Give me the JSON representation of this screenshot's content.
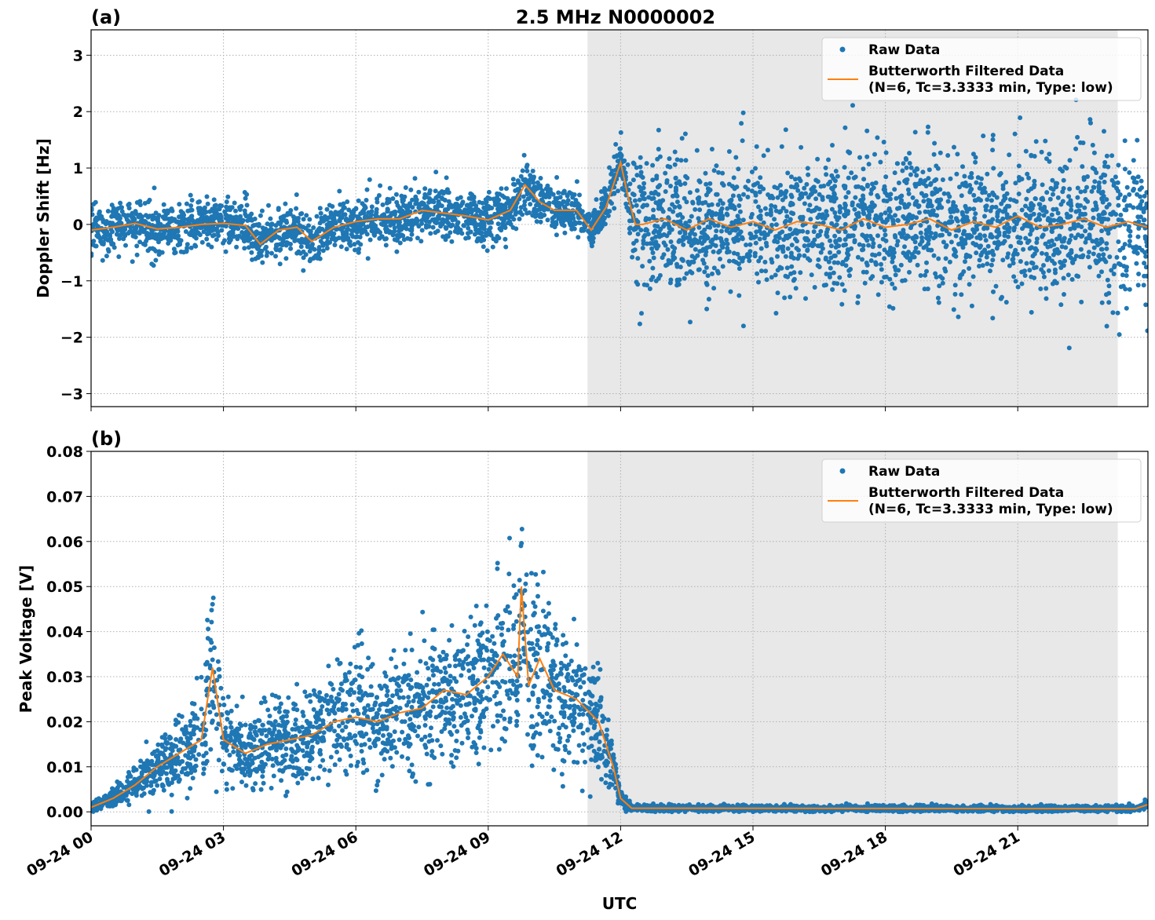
{
  "chart_data": [
    {
      "type": "scatter+line",
      "panel_label": "(a)",
      "title": "2.5 MHz N0000002",
      "ylabel": "Doppler Shift [Hz]",
      "xlabel": "",
      "ylim": [
        -3.23,
        3.45
      ],
      "xlim": [
        "09-24 00:00",
        "09-24 23:57"
      ],
      "yticks": [
        -3,
        -2,
        -1,
        0,
        1,
        2,
        3
      ],
      "ytick_labels": [
        "−3",
        "−2",
        "−1",
        "0",
        "1",
        "2",
        "3"
      ],
      "xticks": [
        "09-24 00:00",
        "09-24 03:00",
        "09-24 06:00",
        "09-24 09:00",
        "09-24 12:00",
        "09-24 15:00",
        "09-24 18:00",
        "09-24 21:00"
      ],
      "shaded_span": [
        "09-24 11:15",
        "09-24 23:16"
      ],
      "grid": true,
      "legend": "top-right",
      "legend_entries": [
        [
          "Raw Data"
        ],
        [
          "Butterworth Filtered Data",
          "(N=6, Tc=3.3333 min, Type: low)"
        ]
      ],
      "series": [
        {
          "name": "Raw Data",
          "type": "scatter",
          "color": "#1f77b4",
          "std": [
            [
              "09-24 00:00",
              0.22
            ],
            [
              "09-24 12:05",
              0.22
            ],
            [
              "09-24 12:15",
              0.62
            ],
            [
              "09-24 23:57",
              0.62
            ]
          ]
        },
        {
          "name": "Butterworth Filtered Data (N=6, Tc=3.3333 min, Type: low)",
          "type": "line",
          "color": "#ff7f0e",
          "points": [
            [
              "09-24 00:00",
              -0.1
            ],
            [
              "09-24 00:30",
              -0.05
            ],
            [
              "09-24 01:00",
              0.02
            ],
            [
              "09-24 01:30",
              -0.08
            ],
            [
              "09-24 02:00",
              -0.05
            ],
            [
              "09-24 02:30",
              0.0
            ],
            [
              "09-24 03:00",
              0.02
            ],
            [
              "09-24 03:30",
              -0.02
            ],
            [
              "09-24 03:50",
              -0.35
            ],
            [
              "09-24 04:15",
              -0.1
            ],
            [
              "09-24 04:40",
              -0.05
            ],
            [
              "09-24 05:00",
              -0.3
            ],
            [
              "09-24 05:30",
              -0.05
            ],
            [
              "09-24 06:00",
              0.05
            ],
            [
              "09-24 06:30",
              0.1
            ],
            [
              "09-24 07:00",
              0.1
            ],
            [
              "09-24 07:30",
              0.25
            ],
            [
              "09-24 08:00",
              0.2
            ],
            [
              "09-24 08:30",
              0.15
            ],
            [
              "09-24 09:00",
              0.08
            ],
            [
              "09-24 09:30",
              0.25
            ],
            [
              "09-24 09:50",
              0.7
            ],
            [
              "09-24 10:10",
              0.4
            ],
            [
              "09-24 10:30",
              0.25
            ],
            [
              "09-24 11:00",
              0.25
            ],
            [
              "09-24 11:20",
              -0.1
            ],
            [
              "09-24 11:40",
              0.3
            ],
            [
              "09-24 12:00",
              1.1
            ],
            [
              "09-24 12:10",
              0.5
            ],
            [
              "09-24 12:20",
              0.0
            ],
            [
              "09-24 12:30",
              0.0
            ],
            [
              "09-24 13:00",
              0.1
            ],
            [
              "09-24 13:30",
              -0.1
            ],
            [
              "09-24 14:00",
              0.1
            ],
            [
              "09-24 14:30",
              -0.05
            ],
            [
              "09-24 15:00",
              0.05
            ],
            [
              "09-24 15:30",
              -0.1
            ],
            [
              "09-24 16:00",
              0.05
            ],
            [
              "09-24 16:30",
              0.0
            ],
            [
              "09-24 17:00",
              -0.1
            ],
            [
              "09-24 17:30",
              0.1
            ],
            [
              "09-24 18:00",
              -0.05
            ],
            [
              "09-24 18:30",
              0.0
            ],
            [
              "09-24 19:00",
              0.1
            ],
            [
              "09-24 19:30",
              -0.1
            ],
            [
              "09-24 20:00",
              0.05
            ],
            [
              "09-24 20:30",
              -0.05
            ],
            [
              "09-24 21:00",
              0.15
            ],
            [
              "09-24 21:30",
              -0.05
            ],
            [
              "09-24 22:00",
              0.0
            ],
            [
              "09-24 22:30",
              0.1
            ],
            [
              "09-24 23:00",
              -0.05
            ],
            [
              "09-24 23:30",
              0.05
            ],
            [
              "09-24 23:57",
              -0.05
            ]
          ]
        }
      ]
    },
    {
      "type": "scatter+line",
      "panel_label": "(b)",
      "title": "",
      "ylabel": "Peak Voltage [V]",
      "xlabel": "UTC",
      "ylim": [
        -0.0031,
        0.08
      ],
      "xlim": [
        "09-24 00:00",
        "09-24 23:57"
      ],
      "yticks": [
        0,
        0.01,
        0.02,
        0.03,
        0.04,
        0.05,
        0.06,
        0.07,
        0.08
      ],
      "ytick_labels": [
        "0.00",
        "0.01",
        "0.02",
        "0.03",
        "0.04",
        "0.05",
        "0.06",
        "0.07",
        "0.08"
      ],
      "xticks": [
        "09-24 00:00",
        "09-24 03:00",
        "09-24 06:00",
        "09-24 09:00",
        "09-24 12:00",
        "09-24 15:00",
        "09-24 18:00",
        "09-24 21:00"
      ],
      "xtick_labels": [
        "09-24 00",
        "09-24 03",
        "09-24 06",
        "09-24 09",
        "09-24 12",
        "09-24 15",
        "09-24 18",
        "09-24 21"
      ],
      "shaded_span": [
        "09-24 11:15",
        "09-24 23:16"
      ],
      "grid": true,
      "legend": "top-right",
      "legend_entries": [
        [
          "Raw Data"
        ],
        [
          "Butterworth Filtered Data",
          "(N=6, Tc=3.3333 min, Type: low)"
        ]
      ],
      "series": [
        {
          "name": "Raw Data",
          "type": "scatter",
          "color": "#1f77b4",
          "relative_std": 0.3
        },
        {
          "name": "Butterworth Filtered Data (N=6, Tc=3.3333 min, Type: low)",
          "type": "line",
          "color": "#ff7f0e",
          "points": [
            [
              "09-24 00:00",
              0.001
            ],
            [
              "09-24 00:30",
              0.003
            ],
            [
              "09-24 01:00",
              0.006
            ],
            [
              "09-24 01:30",
              0.01
            ],
            [
              "09-24 02:00",
              0.013
            ],
            [
              "09-24 02:30",
              0.016
            ],
            [
              "09-24 02:45",
              0.032
            ],
            [
              "09-24 03:00",
              0.016
            ],
            [
              "09-24 03:30",
              0.013
            ],
            [
              "09-24 04:00",
              0.015
            ],
            [
              "09-24 04:30",
              0.016
            ],
            [
              "09-24 05:00",
              0.017
            ],
            [
              "09-24 05:30",
              0.02
            ],
            [
              "09-24 06:00",
              0.021
            ],
            [
              "09-24 06:30",
              0.02
            ],
            [
              "09-24 07:00",
              0.022
            ],
            [
              "09-24 07:30",
              0.023
            ],
            [
              "09-24 08:00",
              0.027
            ],
            [
              "09-24 08:30",
              0.026
            ],
            [
              "09-24 09:00",
              0.03
            ],
            [
              "09-24 09:20",
              0.035
            ],
            [
              "09-24 09:40",
              0.03
            ],
            [
              "09-24 09:45",
              0.05
            ],
            [
              "09-24 09:55",
              0.028
            ],
            [
              "09-24 10:10",
              0.034
            ],
            [
              "09-24 10:30",
              0.027
            ],
            [
              "09-24 11:00",
              0.025
            ],
            [
              "09-24 11:30",
              0.02
            ],
            [
              "09-24 11:50",
              0.01
            ],
            [
              "09-24 12:00",
              0.003
            ],
            [
              "09-24 12:15",
              0.0008
            ],
            [
              "09-24 23:40",
              0.0007
            ],
            [
              "09-24 23:57",
              0.0016
            ]
          ]
        }
      ]
    }
  ]
}
